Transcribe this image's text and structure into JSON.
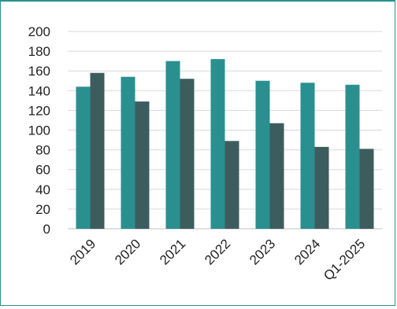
{
  "chart_data": {
    "type": "bar",
    "categories": [
      "2019",
      "2020",
      "2021",
      "2022",
      "2023",
      "2024",
      "Q1-2025"
    ],
    "series": [
      {
        "values": [
          144,
          154,
          170,
          172,
          150,
          148,
          146
        ],
        "color": "#2a8f8f"
      },
      {
        "values": [
          158,
          129,
          152,
          89,
          107,
          83,
          81
        ],
        "color": "#3d5c5e"
      }
    ],
    "ylim": [
      0,
      200
    ],
    "yticks": [
      0,
      20,
      40,
      60,
      80,
      100,
      120,
      140,
      160,
      180,
      200
    ],
    "grid": true,
    "legend": "none"
  }
}
